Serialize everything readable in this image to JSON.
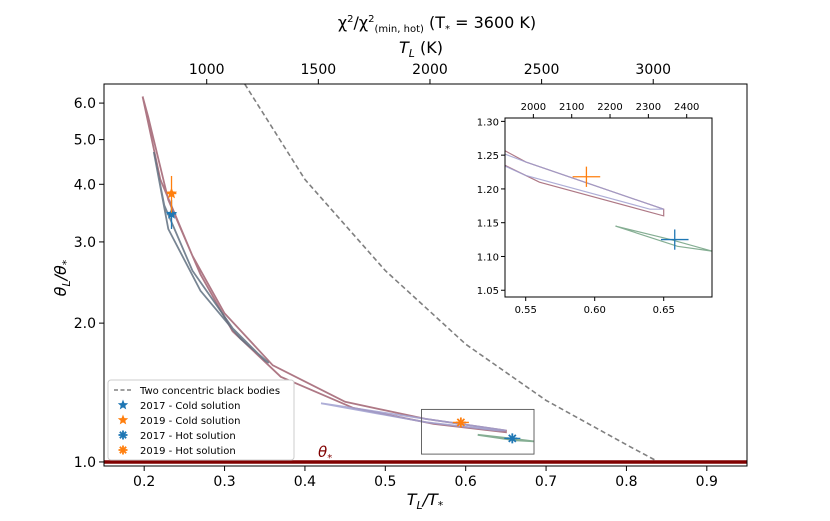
{
  "chart_data": {
    "type": "line",
    "title": "χ²/χ²(min, hot) (T* = 3600 K)",
    "title_parts": {
      "lead": "χ",
      "sq1": "2",
      "slash": "/χ",
      "sq2": "2",
      "sub": "(min, hot)",
      "tail": " (T",
      "star": "*",
      "eq": " = 3600 K)"
    },
    "xlabel": "T_L/T_*",
    "xlabel_parts": {
      "a": "T",
      "a_sub": "L",
      "b": "/T",
      "b_sub": "*"
    },
    "ylabel": "θ_L/θ_*",
    "ylabel_parts": {
      "a": "θ",
      "a_sub": "L",
      "b": "/θ",
      "b_sub": "*"
    },
    "top_xlabel": "T_L (K)",
    "top_xlabel_parts": {
      "a": "T",
      "a_sub": "L",
      "b": " (K)"
    },
    "theta_star_label": "θ*",
    "theta_star_parts": {
      "a": "θ",
      "sub": "*"
    },
    "xlim": [
      0.15,
      0.95
    ],
    "ylim": [
      0.98,
      6.6
    ],
    "yscale": "log",
    "xticks": [
      0.2,
      0.3,
      0.4,
      0.5,
      0.6,
      0.7,
      0.8,
      0.9
    ],
    "xtick_labels": [
      "0.2",
      "0.3",
      "0.4",
      "0.5",
      "0.6",
      "0.7",
      "0.8",
      "0.9"
    ],
    "yticks": [
      1.0,
      2.0,
      3.0,
      4.0,
      5.0,
      6.0
    ],
    "ytick_labels": [
      "1.0",
      "2.0",
      "3.0",
      "4.0",
      "5.0",
      "6.0"
    ],
    "top_xticks_K": [
      1000,
      1500,
      2000,
      2500,
      3000
    ],
    "top_xtick_labels": [
      "1000",
      "1500",
      "2000",
      "2500",
      "3000"
    ],
    "T_star_K": 3600,
    "legend_position": "lower-left",
    "legend": [
      {
        "label": "Two concentric black bodies",
        "color": "#808080",
        "marker": "dash"
      },
      {
        "label": "2017 - Cold solution",
        "color": "#1f77b4",
        "marker": "star"
      },
      {
        "label": "2019 - Cold solution",
        "color": "#ff7f0e",
        "marker": "star"
      },
      {
        "label": "2017 - Hot solution",
        "color": "#1f77b4",
        "marker": "asterisk"
      },
      {
        "label": "2019 - Hot solution",
        "color": "#ff7f0e",
        "marker": "asterisk"
      }
    ],
    "blackbody_curve": [
      [
        0.325,
        6.6
      ],
      [
        0.4,
        4.1
      ],
      [
        0.5,
        2.6
      ],
      [
        0.6,
        1.8
      ],
      [
        0.7,
        1.36
      ],
      [
        0.8,
        1.09
      ],
      [
        0.84,
        1.0
      ]
    ],
    "contours": [
      {
        "color": "#a06070",
        "path": [
          [
            0.198,
            6.2
          ],
          [
            0.22,
            4.1
          ],
          [
            0.26,
            2.8
          ],
          [
            0.3,
            2.1
          ],
          [
            0.36,
            1.62
          ],
          [
            0.45,
            1.35
          ],
          [
            0.55,
            1.24
          ],
          [
            0.65,
            1.17
          ],
          [
            0.65,
            1.16
          ],
          [
            0.56,
            1.21
          ],
          [
            0.46,
            1.31
          ],
          [
            0.37,
            1.53
          ],
          [
            0.31,
            1.92
          ],
          [
            0.27,
            2.55
          ],
          [
            0.23,
            3.7
          ],
          [
            0.205,
            5.6
          ],
          [
            0.198,
            6.2
          ]
        ]
      },
      {
        "color": "#a0a0d0",
        "path": [
          [
            0.42,
            1.34
          ],
          [
            0.55,
            1.24
          ],
          [
            0.65,
            1.17
          ],
          [
            0.64,
            1.17
          ],
          [
            0.55,
            1.22
          ],
          [
            0.42,
            1.34
          ]
        ]
      },
      {
        "color": "#607080",
        "path": [
          [
            0.212,
            4.7
          ],
          [
            0.23,
            3.2
          ],
          [
            0.27,
            2.35
          ],
          [
            0.32,
            1.85
          ],
          [
            0.355,
            1.64
          ],
          [
            0.35,
            1.66
          ],
          [
            0.31,
            1.95
          ],
          [
            0.26,
            2.6
          ],
          [
            0.225,
            3.6
          ],
          [
            0.212,
            4.7
          ]
        ]
      },
      {
        "color": "#70a080",
        "path": [
          [
            0.615,
            1.145
          ],
          [
            0.655,
            1.125
          ],
          [
            0.685,
            1.108
          ],
          [
            0.66,
            1.115
          ],
          [
            0.615,
            1.145
          ]
        ]
      }
    ],
    "points": [
      {
        "name": "2017 - Cold solution",
        "color": "#1f77b4",
        "marker": "star",
        "x": 0.234,
        "y": 3.45,
        "xerr": 0.006,
        "yerr": 0.25
      },
      {
        "name": "2019 - Cold solution",
        "color": "#ff7f0e",
        "marker": "star",
        "x": 0.234,
        "y": 3.82,
        "xerr": 0.006,
        "yerr": 0.35
      },
      {
        "name": "2017 - Hot solution",
        "color": "#1f77b4",
        "marker": "asterisk",
        "x": 0.658,
        "y": 1.125,
        "xerr": 0.01,
        "yerr": 0.015
      },
      {
        "name": "2019 - Hot solution",
        "color": "#ff7f0e",
        "marker": "asterisk",
        "x": 0.594,
        "y": 1.218,
        "xerr": 0.01,
        "yerr": 0.015
      }
    ],
    "theta_star_line": {
      "y": 1.0,
      "color": "#800000"
    },
    "zoom_box": {
      "x": [
        0.545,
        0.685
      ],
      "y": [
        1.04,
        1.3
      ]
    },
    "inset": {
      "xlim": [
        0.535,
        0.685
      ],
      "ylim": [
        1.04,
        1.305
      ],
      "xticks": [
        0.55,
        0.6,
        0.65
      ],
      "xtick_labels": [
        "0.55",
        "0.60",
        "0.65"
      ],
      "yticks": [
        1.05,
        1.1,
        1.15,
        1.2,
        1.25,
        1.3
      ],
      "ytick_labels": [
        "1.05",
        "1.10",
        "1.15",
        "1.20",
        "1.25",
        "1.30"
      ],
      "top_xticks_K": [
        2000,
        2100,
        2200,
        2300,
        2400
      ],
      "top_xtick_labels": [
        "2000",
        "2100",
        "2200",
        "2300",
        "2400"
      ]
    }
  }
}
